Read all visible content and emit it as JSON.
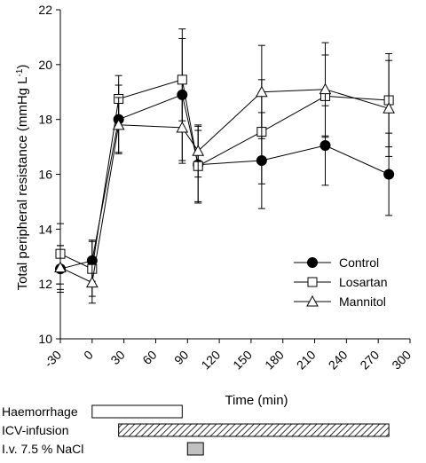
{
  "chart_data": {
    "type": "line",
    "xlabel": "Time (min)",
    "ylabel": "Total peripheral resistance (mmHg L",
    "ylabel_sup": "-1",
    "ylabel_close": ")",
    "xlim": [
      -30,
      300
    ],
    "ylim": [
      10,
      22
    ],
    "xticks": [
      -30,
      0,
      30,
      60,
      90,
      120,
      150,
      180,
      210,
      240,
      270,
      300
    ],
    "yticks": [
      10,
      12,
      14,
      16,
      18,
      20,
      22
    ],
    "grid": false,
    "legend_position": "middle-right",
    "series": [
      {
        "name": "Control",
        "marker": "filled-circle",
        "x": [
          -30,
          0,
          25,
          85,
          100,
          160,
          220,
          280
        ],
        "y": [
          12.55,
          12.85,
          18.0,
          18.9,
          16.35,
          16.5,
          17.05,
          16.0
        ],
        "err": [
          0.85,
          0.75,
          1.25,
          2.4,
          1.4,
          1.75,
          1.45,
          1.5
        ]
      },
      {
        "name": "Losartan",
        "marker": "open-square",
        "x": [
          -30,
          0,
          25,
          85,
          100,
          160,
          220,
          280
        ],
        "y": [
          13.1,
          12.55,
          18.75,
          19.45,
          16.3,
          17.55,
          18.85,
          18.7
        ],
        "err": [
          1.1,
          1.0,
          0.85,
          1.5,
          1.3,
          1.9,
          1.5,
          1.7
        ]
      },
      {
        "name": "Mannitol",
        "marker": "open-triangle",
        "x": [
          -30,
          0,
          25,
          85,
          100,
          160,
          220,
          280
        ],
        "y": [
          12.6,
          12.05,
          17.8,
          17.7,
          16.85,
          19.0,
          19.1,
          18.4
        ],
        "err": [
          0.8,
          0.75,
          1.0,
          1.3,
          0.95,
          1.7,
          1.7,
          1.75
        ]
      }
    ]
  },
  "protocol": [
    {
      "label": "Haemorrhage",
      "start": 0,
      "end": 85,
      "fill": "open"
    },
    {
      "label": "ICV-infusion",
      "start": 25,
      "end": 280,
      "fill": "hatched"
    },
    {
      "label": "I.v. 7.5 % NaCl",
      "start": 90,
      "end": 105,
      "fill": "gray"
    }
  ],
  "colors": {
    "line": "#000000",
    "gray_bar": "#c0c0c0"
  }
}
